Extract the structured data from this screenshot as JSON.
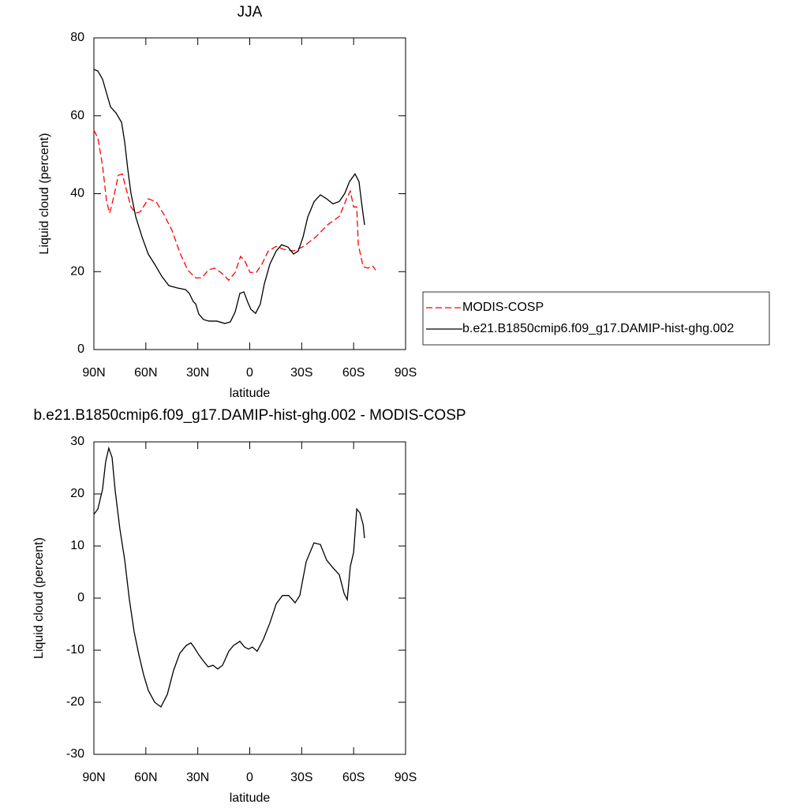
{
  "chart_data": [
    {
      "type": "line",
      "title": "JJA",
      "xlabel": "latitude",
      "ylabel": "Liquid cloud (percent)",
      "xlim": [
        90,
        -90
      ],
      "xticks": [
        {
          "value": 90,
          "label": "90N"
        },
        {
          "value": 60,
          "label": "60N"
        },
        {
          "value": 30,
          "label": "30N"
        },
        0,
        {
          "value": -30,
          "label": "30S"
        },
        {
          "value": -60,
          "label": "60S"
        },
        {
          "value": -90,
          "label": "90S"
        }
      ],
      "ylim": [
        0,
        80
      ],
      "yticks": [
        0,
        20,
        40,
        60,
        80
      ],
      "series": [
        {
          "name": "MODIS-COSP",
          "color": "#ff0000",
          "linestyle": "dashed",
          "x": [
            90,
            87.7,
            85,
            82.7,
            80.9,
            78.6,
            75.9,
            73.6,
            71.3,
            68.6,
            65.8,
            63.1,
            58.6,
            54,
            49.5,
            44.9,
            40.4,
            35.8,
            31.2,
            27.6,
            24,
            20.3,
            16.7,
            12.1,
            8.4,
            5.3,
            3,
            -0.2,
            -3.8,
            -7,
            -10.7,
            -15.3,
            -19.8,
            -25.3,
            -31.2,
            -38.1,
            -44.9,
            -51.8,
            -56.3,
            -58.1,
            -60,
            -61.8,
            -62.7,
            -65.5,
            -68.2,
            -70.9,
            -72.7
          ],
          "values": [
            56.3,
            54.3,
            47.2,
            38.1,
            35,
            39.1,
            44.7,
            45.1,
            41.1,
            36.6,
            35,
            35.4,
            38.7,
            37.9,
            34.6,
            30.6,
            24.9,
            20.4,
            18.4,
            18.4,
            20.4,
            20.9,
            19.8,
            17.8,
            19.8,
            23.9,
            22.9,
            19.8,
            19.8,
            21.9,
            25.3,
            26.5,
            25.7,
            25.3,
            26.5,
            28.9,
            32,
            34.2,
            39.1,
            40.7,
            36.6,
            36.6,
            26.9,
            21.3,
            20.9,
            21.5,
            20.4
          ]
        },
        {
          "name": "b.e21.B1850cmip6.f09_g17.DAMIP-hist-ghg.002",
          "color": "#000000",
          "linestyle": "solid",
          "x": [
            90,
            87.7,
            85,
            82.7,
            80.4,
            77.2,
            74,
            72.2,
            70.4,
            68.6,
            65.8,
            62.2,
            58.6,
            54.9,
            50.8,
            46.7,
            41.7,
            37.1,
            34.9,
            32.6,
            31.2,
            29.4,
            26.7,
            23.5,
            19,
            14.4,
            11.2,
            8.4,
            5.7,
            3.4,
            1.1,
            -0.7,
            -3.4,
            -6.1,
            -8.4,
            -11.6,
            -15.3,
            -18.4,
            -22.1,
            -25.3,
            -28,
            -30.8,
            -33.5,
            -37.2,
            -40.8,
            -44.4,
            -48.1,
            -51.7,
            -54.9,
            -57.6,
            -60.8,
            -63.1,
            -64.5,
            -66.3
          ],
          "values": [
            71.9,
            71.5,
            69.4,
            65.8,
            62.3,
            60.7,
            58.3,
            53.2,
            46.2,
            40.1,
            34,
            28.9,
            24.5,
            21.9,
            18.8,
            16.4,
            15.8,
            15.4,
            14.4,
            12.3,
            11.7,
            9.1,
            7.7,
            7.3,
            7.3,
            6.7,
            7.1,
            9.7,
            14.4,
            14.8,
            12.1,
            10.3,
            9.3,
            11.7,
            16.8,
            21.9,
            25.3,
            26.9,
            26.3,
            24.5,
            25.3,
            28.9,
            34,
            38,
            39.7,
            38.7,
            37.4,
            38,
            40.1,
            43.1,
            45.1,
            43.1,
            38,
            32
          ]
        }
      ]
    },
    {
      "type": "line",
      "title": "b.e21.B1850cmip6.f09_g17.DAMIP-hist-ghg.002 - MODIS-COSP",
      "xlabel": "latitude",
      "ylabel": "Liquid cloud (percent)",
      "xlim": [
        90,
        -90
      ],
      "xticks": [
        {
          "value": 90,
          "label": "90N"
        },
        {
          "value": 60,
          "label": "60N"
        },
        {
          "value": 30,
          "label": "30N"
        },
        0,
        {
          "value": -30,
          "label": "30S"
        },
        {
          "value": -60,
          "label": "60S"
        },
        {
          "value": -90,
          "label": "90S"
        }
      ],
      "ylim": [
        -30,
        30
      ],
      "yticks": [
        -30,
        -20,
        -10,
        0,
        10,
        20,
        30
      ],
      "series": [
        {
          "color": "#000000",
          "linestyle": "solid",
          "x": [
            90,
            87.7,
            85,
            83.2,
            81.4,
            79.5,
            77.7,
            75,
            72.2,
            69.5,
            66.8,
            64,
            61.3,
            58.6,
            54.9,
            51.3,
            47.6,
            44,
            40.4,
            36.7,
            34,
            32.2,
            29.4,
            26.7,
            24,
            21.2,
            18.5,
            15.7,
            12.1,
            9.4,
            5.7,
            3,
            0.7,
            -1.5,
            -4.3,
            -7.9,
            -11.6,
            -15.3,
            -18.9,
            -22.5,
            -26.2,
            -28.9,
            -32.6,
            -37.1,
            -40.8,
            -44.4,
            -48.1,
            -51.7,
            -54.5,
            -56.3,
            -58.1,
            -60,
            -61.8,
            -63.6,
            -65.5,
            -66.3
          ],
          "values": [
            16.1,
            17.1,
            20.9,
            26.2,
            28.8,
            27,
            20.6,
            13.3,
            7.3,
            -0.3,
            -6.4,
            -10.9,
            -14.7,
            -17.7,
            -20,
            -20.9,
            -18.5,
            -13.9,
            -10.6,
            -9.1,
            -8.6,
            -9.4,
            -10.9,
            -12.1,
            -13.2,
            -12.9,
            -13.6,
            -12.9,
            -10.2,
            -9.1,
            -8.3,
            -9.4,
            -9.8,
            -9.4,
            -10.2,
            -7.9,
            -4.8,
            -1.1,
            0.5,
            0.5,
            -0.9,
            0.5,
            7,
            10.6,
            10.3,
            7.3,
            5.8,
            4.5,
            0.9,
            -0.3,
            6.1,
            8.8,
            17.1,
            16.4,
            14.1,
            11.5
          ]
        }
      ]
    }
  ]
}
